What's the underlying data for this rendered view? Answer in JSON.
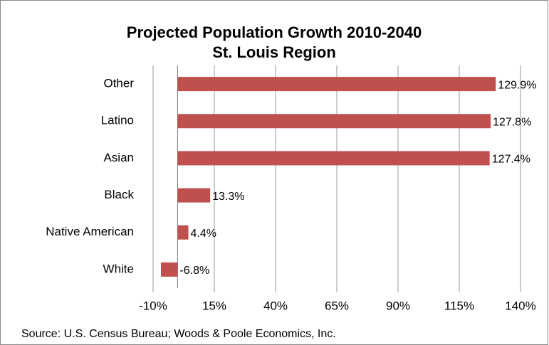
{
  "chart_data": {
    "type": "bar",
    "orientation": "horizontal",
    "title": "Projected Population Growth 2010-2040",
    "subtitle": "St. Louis Region",
    "categories": [
      "Other",
      "Latino",
      "Asian",
      "Black",
      "Native American",
      "White"
    ],
    "values": [
      129.9,
      127.8,
      127.4,
      13.3,
      4.4,
      -6.8
    ],
    "value_labels": [
      "129.9%",
      "127.8%",
      "127.4%",
      "13.3%",
      "4.4%",
      "-6.8%"
    ],
    "color": "#c0504d",
    "xlim": [
      -10,
      140
    ],
    "xticks": [
      {
        "value": -10,
        "label": "-10%"
      },
      {
        "value": 15,
        "label": "15%"
      },
      {
        "value": 40,
        "label": "40%"
      },
      {
        "value": 65,
        "label": "65%"
      },
      {
        "value": 90,
        "label": "90%"
      },
      {
        "value": 115,
        "label": "115%"
      },
      {
        "value": 140,
        "label": "140%"
      }
    ],
    "grid": true,
    "source": "Source: U.S. Census Bureau; Woods & Poole Economics, Inc."
  }
}
